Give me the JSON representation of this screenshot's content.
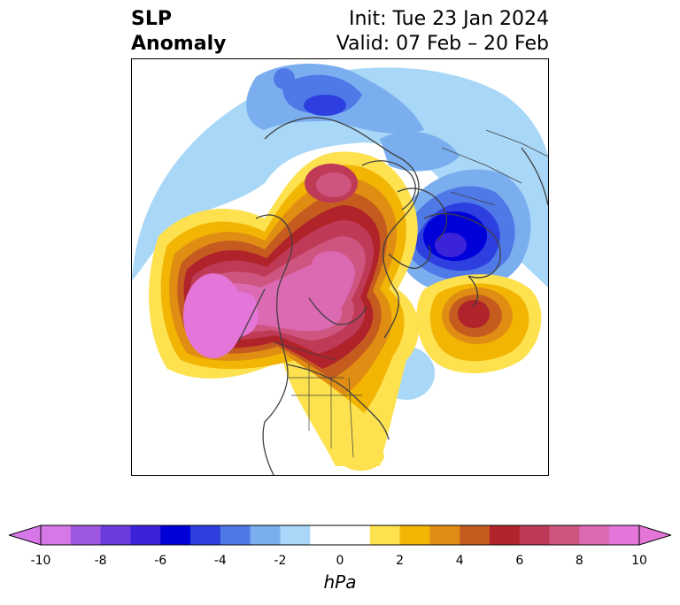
{
  "title": {
    "line1": "SLP",
    "line2": "Anomaly"
  },
  "meta": {
    "init": "Init: Tue 23 Jan 2024",
    "valid": "Valid: 07 Feb – 20 Feb"
  },
  "colorbar": {
    "unit": "hPa",
    "ticks": [
      "-10",
      "-8",
      "-6",
      "-4",
      "-2",
      "0",
      "2",
      "4",
      "6",
      "8",
      "10"
    ],
    "colors": [
      "#d777e8",
      "#9d57e0",
      "#6c3cdc",
      "#3a23d8",
      "#0000d8",
      "#2d3fdf",
      "#4f79e6",
      "#7aaeee",
      "#a8d7f8",
      "#ffffff",
      "#ffffff",
      "#fde14f",
      "#f2b503",
      "#e08e13",
      "#c55b1f",
      "#b0232a",
      "#bf3a56",
      "#cf5581",
      "#dc6ab3",
      "#e576d9"
    ],
    "extend_low": "#d777e8",
    "extend_high": "#e576d9"
  },
  "map": {
    "region": "Northern Hemisphere polar stereographic",
    "features": [
      {
        "name": "positive anomaly north pacific",
        "sign": "+",
        "peak": 10
      },
      {
        "name": "positive anomaly canada arctic",
        "sign": "+",
        "peak": 8
      },
      {
        "name": "positive anomaly central atlantic",
        "sign": "+",
        "peak": 6
      },
      {
        "name": "negative anomaly scandinavia",
        "sign": "-",
        "peak": -7
      },
      {
        "name": "negative anomaly eastern siberia",
        "sign": "-",
        "peak": -5
      },
      {
        "name": "negative anomaly western atlantic",
        "sign": "-",
        "peak": -2
      }
    ]
  }
}
